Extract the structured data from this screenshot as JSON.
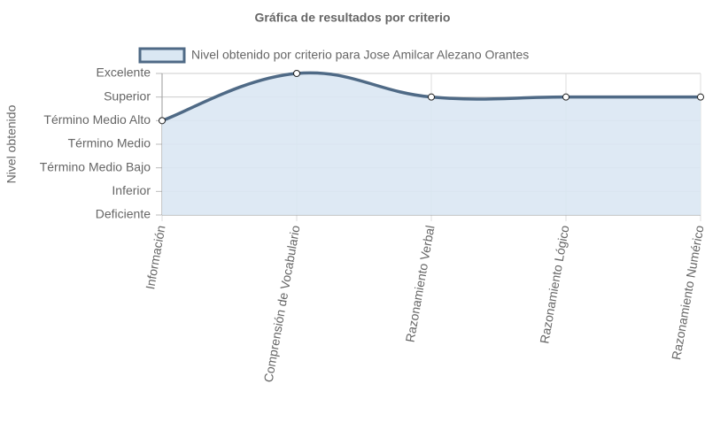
{
  "chart_data": {
    "type": "line",
    "title": "Gráfica de resultados por criterio",
    "y_axis_label": "Nivel obtenido",
    "categories": [
      "Información",
      "Comprensión de Vocabulario",
      "Razonamiento Verbal",
      "Razonamiento Lógico",
      "Razonamiento Numérico"
    ],
    "series": [
      {
        "name": "Nivel obtenido por criterio para Jose Amilcar Alezano Orantes",
        "color": "#4f6a86",
        "fill": "#dae7f3",
        "values": [
          4,
          6,
          5,
          5,
          5
        ]
      }
    ],
    "ylim": [
      0,
      6
    ],
    "yticks": [
      {
        "value": 0,
        "label": "Deficiente"
      },
      {
        "value": 1,
        "label": "Inferior"
      },
      {
        "value": 2,
        "label": "Término Medio Bajo"
      },
      {
        "value": 3,
        "label": "Término Medio"
      },
      {
        "value": 4,
        "label": "Término Medio Alto"
      },
      {
        "value": 5,
        "label": "Superior"
      },
      {
        "value": 6,
        "label": "Excelente"
      }
    ],
    "grid": true
  }
}
